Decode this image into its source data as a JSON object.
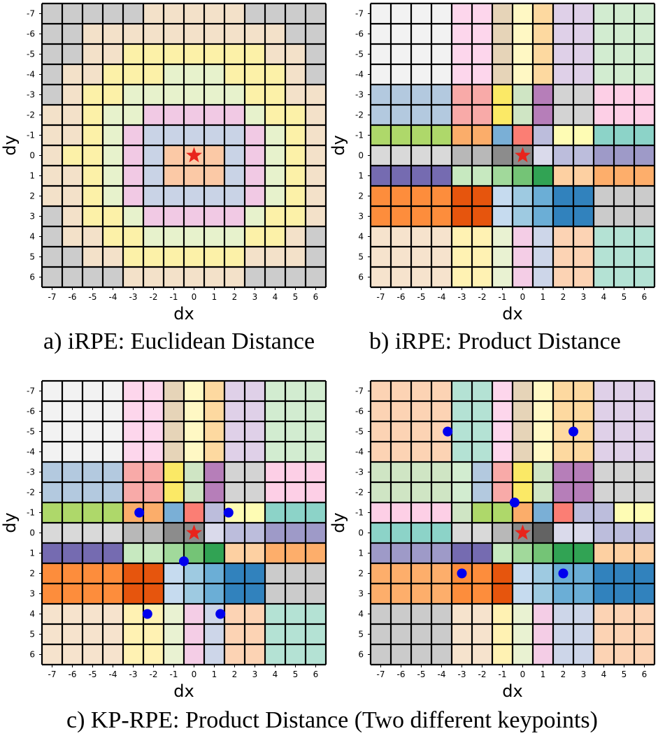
{
  "star_color": "#e8241c",
  "dot_color": "#0000ee",
  "grid_line_color": "#000000",
  "x_ticks": [
    "-7",
    "-6",
    "-5",
    "-4",
    "-3",
    "-2",
    "-1",
    "0",
    "1",
    "2",
    "3",
    "4",
    "5",
    "6"
  ],
  "y_ticks": [
    "-7",
    "-6",
    "-5",
    "-4",
    "-3",
    "-2",
    "-1",
    "0",
    "1",
    "2",
    "3",
    "4",
    "5",
    "6"
  ],
  "palette": {
    "gray": "#cccccc",
    "peach": "#f3e1c9",
    "yellow": "#fcf1a8",
    "lime": "#e7f2cc",
    "pink": "#f1c9e4",
    "blue": "#c9d3e6",
    "salmon": "#fbc9a6",
    "white": "#f2f2f2",
    "lpink": "#fdd6ec",
    "tan": "#e6d4b8",
    "lyellow": "#fff8c4",
    "lorange": "#fdd9a0",
    "lav": "#dfd0e8",
    "mint": "#d2ecd0",
    "sblue": "#b3c9df",
    "rose": "#f8aaa8",
    "yel": "#fbe966",
    "lgreen": "#cfe5c4",
    "purple": "#b67eb9",
    "gray2": "#d3d3d3",
    "pink2": "#fdcfe6",
    "green": "#aed86a",
    "orange": "#fbad6a",
    "mblue": "#7aafd6",
    "red": "#fb7e74",
    "pyel": "#fefcb4",
    "teal": "#8cd3c8",
    "lgray": "#d9d9d9",
    "mgray": "#b8b8b8",
    "dgray": "#8c8c8c",
    "gray3": "#c4c4c4",
    "lav2": "#bcbddc",
    "pale": "#dadaeb",
    "vlav": "#9e9ac8",
    "indigo": "#756bb1",
    "lgr2": "#c7e9c0",
    "mgr": "#a1d99b",
    "green3": "#74c476",
    "dgreen": "#31a354",
    "lsal": "#fdd0a2",
    "orange2": "#fdae6b",
    "gray4": "#cbcbcb",
    "dor": "#fd8d3c",
    "dred": "#e6550d",
    "pblue": "#c6dbef",
    "lblue": "#9ecae1",
    "blue2": "#6baed6",
    "dblue": "#3182bd",
    "grey5": "#cacaca",
    "pch": "#f6e3cd",
    "pyellow": "#fff2b3",
    "plime": "#e9f2d2",
    "ppink": "#f4cde6",
    "pblue2": "#cdd6e9",
    "ppeach": "#fcd3b4",
    "pteal": "#b4e2d4",
    "dgray2": "#636363",
    "vlgray": "#f0f0f0"
  },
  "panels": {
    "a": {
      "caption": "a) iRPE: Euclidean Distance",
      "x_label": "dx",
      "y_label": "dy",
      "star": {
        "dx": 0,
        "dy": 0
      },
      "dots": []
    },
    "b": {
      "caption": "b) iRPE: Product Distance",
      "x_label": "dx",
      "y_label": "dy",
      "star": {
        "dx": 0,
        "dy": 0
      },
      "dots": []
    },
    "c1": {
      "x_label": "dx",
      "y_label": "dy",
      "star": {
        "dx": 0,
        "dy": 0
      },
      "dots": [
        {
          "dx": -2.7,
          "dy": -1
        },
        {
          "dx": 1.7,
          "dy": -1
        },
        {
          "dx": -0.5,
          "dy": 1.4
        },
        {
          "dx": -2.3,
          "dy": 4
        },
        {
          "dx": 1.3,
          "dy": 4
        }
      ]
    },
    "c2": {
      "x_label": "dx",
      "y_label": "dy",
      "star": {
        "dx": 0,
        "dy": 0
      },
      "dots": [
        {
          "dx": -3.7,
          "dy": -5
        },
        {
          "dx": 2.5,
          "dy": -5
        },
        {
          "dx": -0.4,
          "dy": -1.5
        },
        {
          "dx": -3,
          "dy": 2
        },
        {
          "dx": 2,
          "dy": 2
        }
      ]
    },
    "c_caption": "c) KP-RPE: Product Distance (Two different keypoints)"
  },
  "grids": {
    "a": [
      [
        "gray",
        "gray",
        "gray",
        "gray",
        "gray",
        "peach",
        "peach",
        "peach",
        "peach",
        "peach",
        "gray",
        "gray",
        "gray",
        "gray"
      ],
      [
        "gray",
        "gray",
        "peach",
        "peach",
        "peach",
        "peach",
        "peach",
        "peach",
        "peach",
        "peach",
        "peach",
        "peach",
        "gray",
        "gray"
      ],
      [
        "gray",
        "gray",
        "peach",
        "peach",
        "yellow",
        "yellow",
        "yellow",
        "yellow",
        "yellow",
        "yellow",
        "yellow",
        "peach",
        "peach",
        "gray"
      ],
      [
        "gray",
        "peach",
        "peach",
        "yellow",
        "yellow",
        "yellow",
        "lime",
        "lime",
        "lime",
        "yellow",
        "yellow",
        "yellow",
        "peach",
        "gray"
      ],
      [
        "gray",
        "peach",
        "yellow",
        "yellow",
        "lime",
        "lime",
        "lime",
        "lime",
        "lime",
        "lime",
        "yellow",
        "yellow",
        "peach",
        "peach"
      ],
      [
        "peach",
        "peach",
        "yellow",
        "lime",
        "lime",
        "pink",
        "pink",
        "pink",
        "pink",
        "pink",
        "lime",
        "yellow",
        "yellow",
        "peach"
      ],
      [
        "peach",
        "peach",
        "yellow",
        "lime",
        "pink",
        "blue",
        "blue",
        "blue",
        "blue",
        "blue",
        "pink",
        "lime",
        "yellow",
        "peach"
      ],
      [
        "peach",
        "yellow",
        "yellow",
        "lime",
        "pink",
        "blue",
        "salmon",
        "salmon",
        "salmon",
        "blue",
        "pink",
        "lime",
        "yellow",
        "peach"
      ],
      [
        "peach",
        "peach",
        "yellow",
        "lime",
        "pink",
        "blue",
        "salmon",
        "salmon",
        "salmon",
        "blue",
        "pink",
        "lime",
        "yellow",
        "peach"
      ],
      [
        "peach",
        "peach",
        "yellow",
        "lime",
        "pink",
        "blue",
        "blue",
        "blue",
        "blue",
        "blue",
        "pink",
        "lime",
        "yellow",
        "peach"
      ],
      [
        "gray",
        "peach",
        "yellow",
        "yellow",
        "lime",
        "pink",
        "pink",
        "pink",
        "pink",
        "pink",
        "lime",
        "yellow",
        "yellow",
        "peach"
      ],
      [
        "gray",
        "peach",
        "peach",
        "yellow",
        "yellow",
        "lime",
        "lime",
        "lime",
        "lime",
        "lime",
        "yellow",
        "yellow",
        "peach",
        "gray"
      ],
      [
        "gray",
        "gray",
        "peach",
        "peach",
        "yellow",
        "yellow",
        "yellow",
        "yellow",
        "yellow",
        "yellow",
        "peach",
        "peach",
        "peach",
        "gray"
      ],
      [
        "gray",
        "gray",
        "gray",
        "gray",
        "peach",
        "peach",
        "peach",
        "peach",
        "peach",
        "peach",
        "gray",
        "gray",
        "gray",
        "gray"
      ]
    ],
    "b": [
      [
        "white",
        "white",
        "white",
        "white",
        "lpink",
        "lpink",
        "tan",
        "lyellow",
        "lorange",
        "lav",
        "lav",
        "mint",
        "mint",
        "mint"
      ],
      [
        "white",
        "white",
        "white",
        "white",
        "lpink",
        "lpink",
        "tan",
        "lyellow",
        "lorange",
        "lav",
        "lav",
        "mint",
        "mint",
        "mint"
      ],
      [
        "white",
        "white",
        "white",
        "white",
        "lpink",
        "lpink",
        "tan",
        "lyellow",
        "lorange",
        "lav",
        "lav",
        "mint",
        "mint",
        "mint"
      ],
      [
        "white",
        "white",
        "white",
        "white",
        "lpink",
        "lpink",
        "tan",
        "lyellow",
        "lorange",
        "lav",
        "lav",
        "mint",
        "mint",
        "mint"
      ],
      [
        "sblue",
        "sblue",
        "sblue",
        "sblue",
        "rose",
        "rose",
        "yel",
        "lgreen",
        "purple",
        "gray2",
        "gray2",
        "pink2",
        "pink2",
        "pink2"
      ],
      [
        "sblue",
        "sblue",
        "sblue",
        "sblue",
        "rose",
        "rose",
        "yel",
        "lgreen",
        "purple",
        "gray2",
        "gray2",
        "pink2",
        "pink2",
        "pink2"
      ],
      [
        "green",
        "green",
        "green",
        "green",
        "orange",
        "orange",
        "mblue",
        "red",
        "lav2",
        "pyel",
        "pyel",
        "teal",
        "teal",
        "teal"
      ],
      [
        "lgray",
        "lgray",
        "lgray",
        "lgray",
        "mgray",
        "mgray",
        "dgray",
        "dgray",
        "pale",
        "lav2",
        "lav2",
        "vlav",
        "vlav",
        "vlav"
      ],
      [
        "indigo",
        "indigo",
        "indigo",
        "indigo",
        "lgr2",
        "lgr2",
        "mgr",
        "green3",
        "dgreen",
        "lsal",
        "lsal",
        "orange2",
        "orange2",
        "orange2"
      ],
      [
        "dor",
        "dor",
        "dor",
        "dor",
        "dred",
        "dred",
        "pblue",
        "lblue",
        "blue2",
        "dblue",
        "dblue",
        "gray4",
        "gray4",
        "gray4"
      ],
      [
        "dor",
        "dor",
        "dor",
        "dor",
        "dred",
        "dred",
        "pblue",
        "lblue",
        "blue2",
        "dblue",
        "dblue",
        "gray4",
        "gray4",
        "gray4"
      ],
      [
        "pch",
        "pch",
        "pch",
        "pch",
        "pyellow",
        "pyellow",
        "plime",
        "ppink",
        "pblue2",
        "ppeach",
        "ppeach",
        "pteal",
        "pteal",
        "pteal"
      ],
      [
        "pch",
        "pch",
        "pch",
        "pch",
        "pyellow",
        "pyellow",
        "plime",
        "ppink",
        "pblue2",
        "ppeach",
        "ppeach",
        "pteal",
        "pteal",
        "pteal"
      ],
      [
        "pch",
        "pch",
        "pch",
        "pch",
        "pyellow",
        "pyellow",
        "plime",
        "ppink",
        "pblue2",
        "ppeach",
        "ppeach",
        "pteal",
        "pteal",
        "pteal"
      ]
    ],
    "c1": [
      [
        "white",
        "white",
        "white",
        "white",
        "lpink",
        "lpink",
        "tan",
        "lyellow",
        "lorange",
        "lav",
        "lav",
        "mint",
        "mint",
        "mint"
      ],
      [
        "white",
        "white",
        "white",
        "white",
        "lpink",
        "lpink",
        "tan",
        "lyellow",
        "lorange",
        "lav",
        "lav",
        "mint",
        "mint",
        "mint"
      ],
      [
        "white",
        "white",
        "white",
        "white",
        "lpink",
        "lpink",
        "tan",
        "lyellow",
        "lorange",
        "lav",
        "lav",
        "mint",
        "mint",
        "mint"
      ],
      [
        "white",
        "white",
        "white",
        "white",
        "lpink",
        "lpink",
        "tan",
        "lyellow",
        "lorange",
        "lav",
        "lav",
        "mint",
        "mint",
        "mint"
      ],
      [
        "sblue",
        "sblue",
        "sblue",
        "sblue",
        "rose",
        "rose",
        "yel",
        "lgreen",
        "purple",
        "gray2",
        "gray2",
        "pink2",
        "pink2",
        "pink2"
      ],
      [
        "sblue",
        "sblue",
        "sblue",
        "sblue",
        "rose",
        "rose",
        "yel",
        "lgreen",
        "purple",
        "gray2",
        "gray2",
        "pink2",
        "pink2",
        "pink2"
      ],
      [
        "green",
        "green",
        "green",
        "green",
        "orange",
        "orange",
        "mblue",
        "red",
        "lav2",
        "pyel",
        "pyel",
        "teal",
        "teal",
        "teal"
      ],
      [
        "lgray",
        "lgray",
        "lgray",
        "lgray",
        "mgray",
        "mgray",
        "dgray",
        "dgray",
        "pale",
        "lav2",
        "lav2",
        "vlav",
        "vlav",
        "vlav"
      ],
      [
        "indigo",
        "indigo",
        "indigo",
        "indigo",
        "lgr2",
        "lgr2",
        "mgr",
        "green3",
        "dgreen",
        "lsal",
        "lsal",
        "orange2",
        "orange2",
        "orange2"
      ],
      [
        "dor",
        "dor",
        "dor",
        "dor",
        "dred",
        "dred",
        "pblue",
        "lblue",
        "blue2",
        "dblue",
        "dblue",
        "gray4",
        "gray4",
        "gray4"
      ],
      [
        "dor",
        "dor",
        "dor",
        "dor",
        "dred",
        "dred",
        "pblue",
        "lblue",
        "blue2",
        "dblue",
        "dblue",
        "gray4",
        "gray4",
        "gray4"
      ],
      [
        "pch",
        "pch",
        "pch",
        "pch",
        "pyellow",
        "pyellow",
        "plime",
        "ppink",
        "pblue2",
        "ppeach",
        "ppeach",
        "pteal",
        "pteal",
        "pteal"
      ],
      [
        "pch",
        "pch",
        "pch",
        "pch",
        "pyellow",
        "pyellow",
        "plime",
        "ppink",
        "pblue2",
        "ppeach",
        "ppeach",
        "pteal",
        "pteal",
        "pteal"
      ],
      [
        "pch",
        "pch",
        "pch",
        "pch",
        "pyellow",
        "pyellow",
        "plime",
        "ppink",
        "pblue2",
        "ppeach",
        "ppeach",
        "pteal",
        "pteal",
        "pteal"
      ]
    ],
    "c2": [
      [
        "ppeach",
        "ppeach",
        "ppeach",
        "ppeach",
        "pteal",
        "pteal",
        "lpink",
        "tan",
        "lyellow",
        "lorange",
        "lorange",
        "lav",
        "lav",
        "lav"
      ],
      [
        "ppeach",
        "ppeach",
        "ppeach",
        "ppeach",
        "pteal",
        "pteal",
        "lpink",
        "tan",
        "lyellow",
        "lorange",
        "lorange",
        "lav",
        "lav",
        "lav"
      ],
      [
        "ppeach",
        "ppeach",
        "ppeach",
        "ppeach",
        "pteal",
        "pteal",
        "lpink",
        "tan",
        "lyellow",
        "lorange",
        "lorange",
        "lav",
        "lav",
        "lav"
      ],
      [
        "ppeach",
        "ppeach",
        "ppeach",
        "ppeach",
        "pteal",
        "pteal",
        "lpink",
        "tan",
        "lyellow",
        "lorange",
        "lorange",
        "lav",
        "lav",
        "lav"
      ],
      [
        "lgreen",
        "lgreen",
        "lgreen",
        "lgreen",
        "mint",
        "sblue",
        "rose",
        "yel",
        "lgreen",
        "purple",
        "purple",
        "gray2",
        "gray2",
        "gray2"
      ],
      [
        "lgreen",
        "lgreen",
        "lgreen",
        "lgreen",
        "mint",
        "sblue",
        "rose",
        "yel",
        "lgreen",
        "purple",
        "purple",
        "gray2",
        "gray2",
        "gray2"
      ],
      [
        "pink2",
        "pink2",
        "pink2",
        "pink2",
        "lgreen",
        "green",
        "green",
        "orange",
        "mblue",
        "red",
        "lav2",
        "lav2",
        "pyel",
        "pyel"
      ],
      [
        "teal",
        "teal",
        "teal",
        "teal",
        "lgray",
        "lgray",
        "mgray",
        "dgray",
        "dgray2",
        "pale",
        "pale",
        "lav2",
        "lav2",
        "lav2"
      ],
      [
        "vlav",
        "vlav",
        "vlav",
        "vlav",
        "indigo",
        "indigo",
        "lgr2",
        "mgr",
        "green3",
        "dgreen",
        "dgreen",
        "lsal",
        "lsal",
        "lsal"
      ],
      [
        "orange2",
        "orange2",
        "orange2",
        "orange2",
        "dor",
        "dor",
        "dred",
        "pblue",
        "lblue",
        "blue2",
        "blue2",
        "dblue",
        "dblue",
        "dblue"
      ],
      [
        "orange2",
        "orange2",
        "orange2",
        "orange2",
        "dor",
        "dor",
        "dred",
        "pblue",
        "lblue",
        "blue2",
        "blue2",
        "dblue",
        "dblue",
        "dblue"
      ],
      [
        "gray4",
        "gray4",
        "gray4",
        "gray4",
        "pch",
        "pch",
        "pyellow",
        "plime",
        "ppink",
        "pblue2",
        "pblue2",
        "ppeach",
        "ppeach",
        "ppeach"
      ],
      [
        "gray4",
        "gray4",
        "gray4",
        "gray4",
        "pch",
        "pch",
        "pyellow",
        "plime",
        "ppink",
        "pblue2",
        "pblue2",
        "ppeach",
        "ppeach",
        "ppeach"
      ],
      [
        "gray4",
        "gray4",
        "gray4",
        "gray4",
        "pch",
        "pch",
        "pyellow",
        "plime",
        "ppink",
        "pblue2",
        "pblue2",
        "ppeach",
        "ppeach",
        "ppeach"
      ]
    ]
  }
}
